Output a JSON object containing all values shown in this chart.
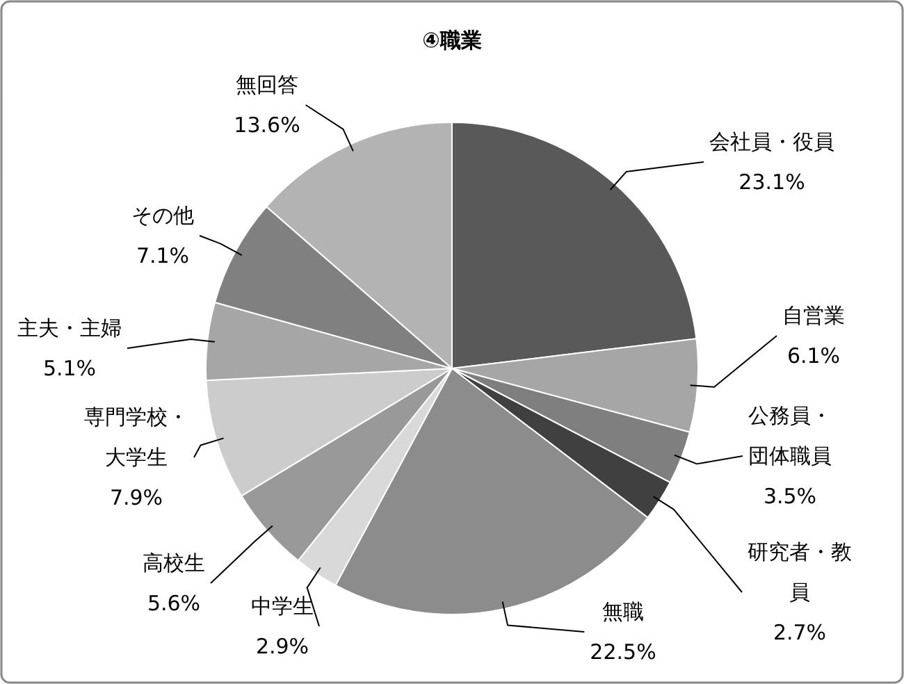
{
  "chart_data": {
    "type": "pie",
    "title": "④職業",
    "categories": [
      "会社員・役員",
      "自営業",
      "公務員・団体職員",
      "研究者・教員",
      "無職",
      "中学生",
      "高校生",
      "専門学校・大学生",
      "主夫・主婦",
      "その他",
      "無回答"
    ],
    "values": [
      23.1,
      6.1,
      3.5,
      2.7,
      22.5,
      2.9,
      5.6,
      7.9,
      5.1,
      7.1,
      13.6
    ],
    "value_labels": [
      "23.1%",
      "6.1%",
      "3.5%",
      "2.7%",
      "22.5%",
      "2.9%",
      "5.6%",
      "7.9%",
      "5.1%",
      "7.1%",
      "13.6%"
    ],
    "colors": [
      "#595959",
      "#a6a6a6",
      "#7f7f7f",
      "#404040",
      "#8c8c8c",
      "#d9d9d9",
      "#999999",
      "#cccccc",
      "#a6a6a6",
      "#808080",
      "#b3b3b3"
    ]
  }
}
